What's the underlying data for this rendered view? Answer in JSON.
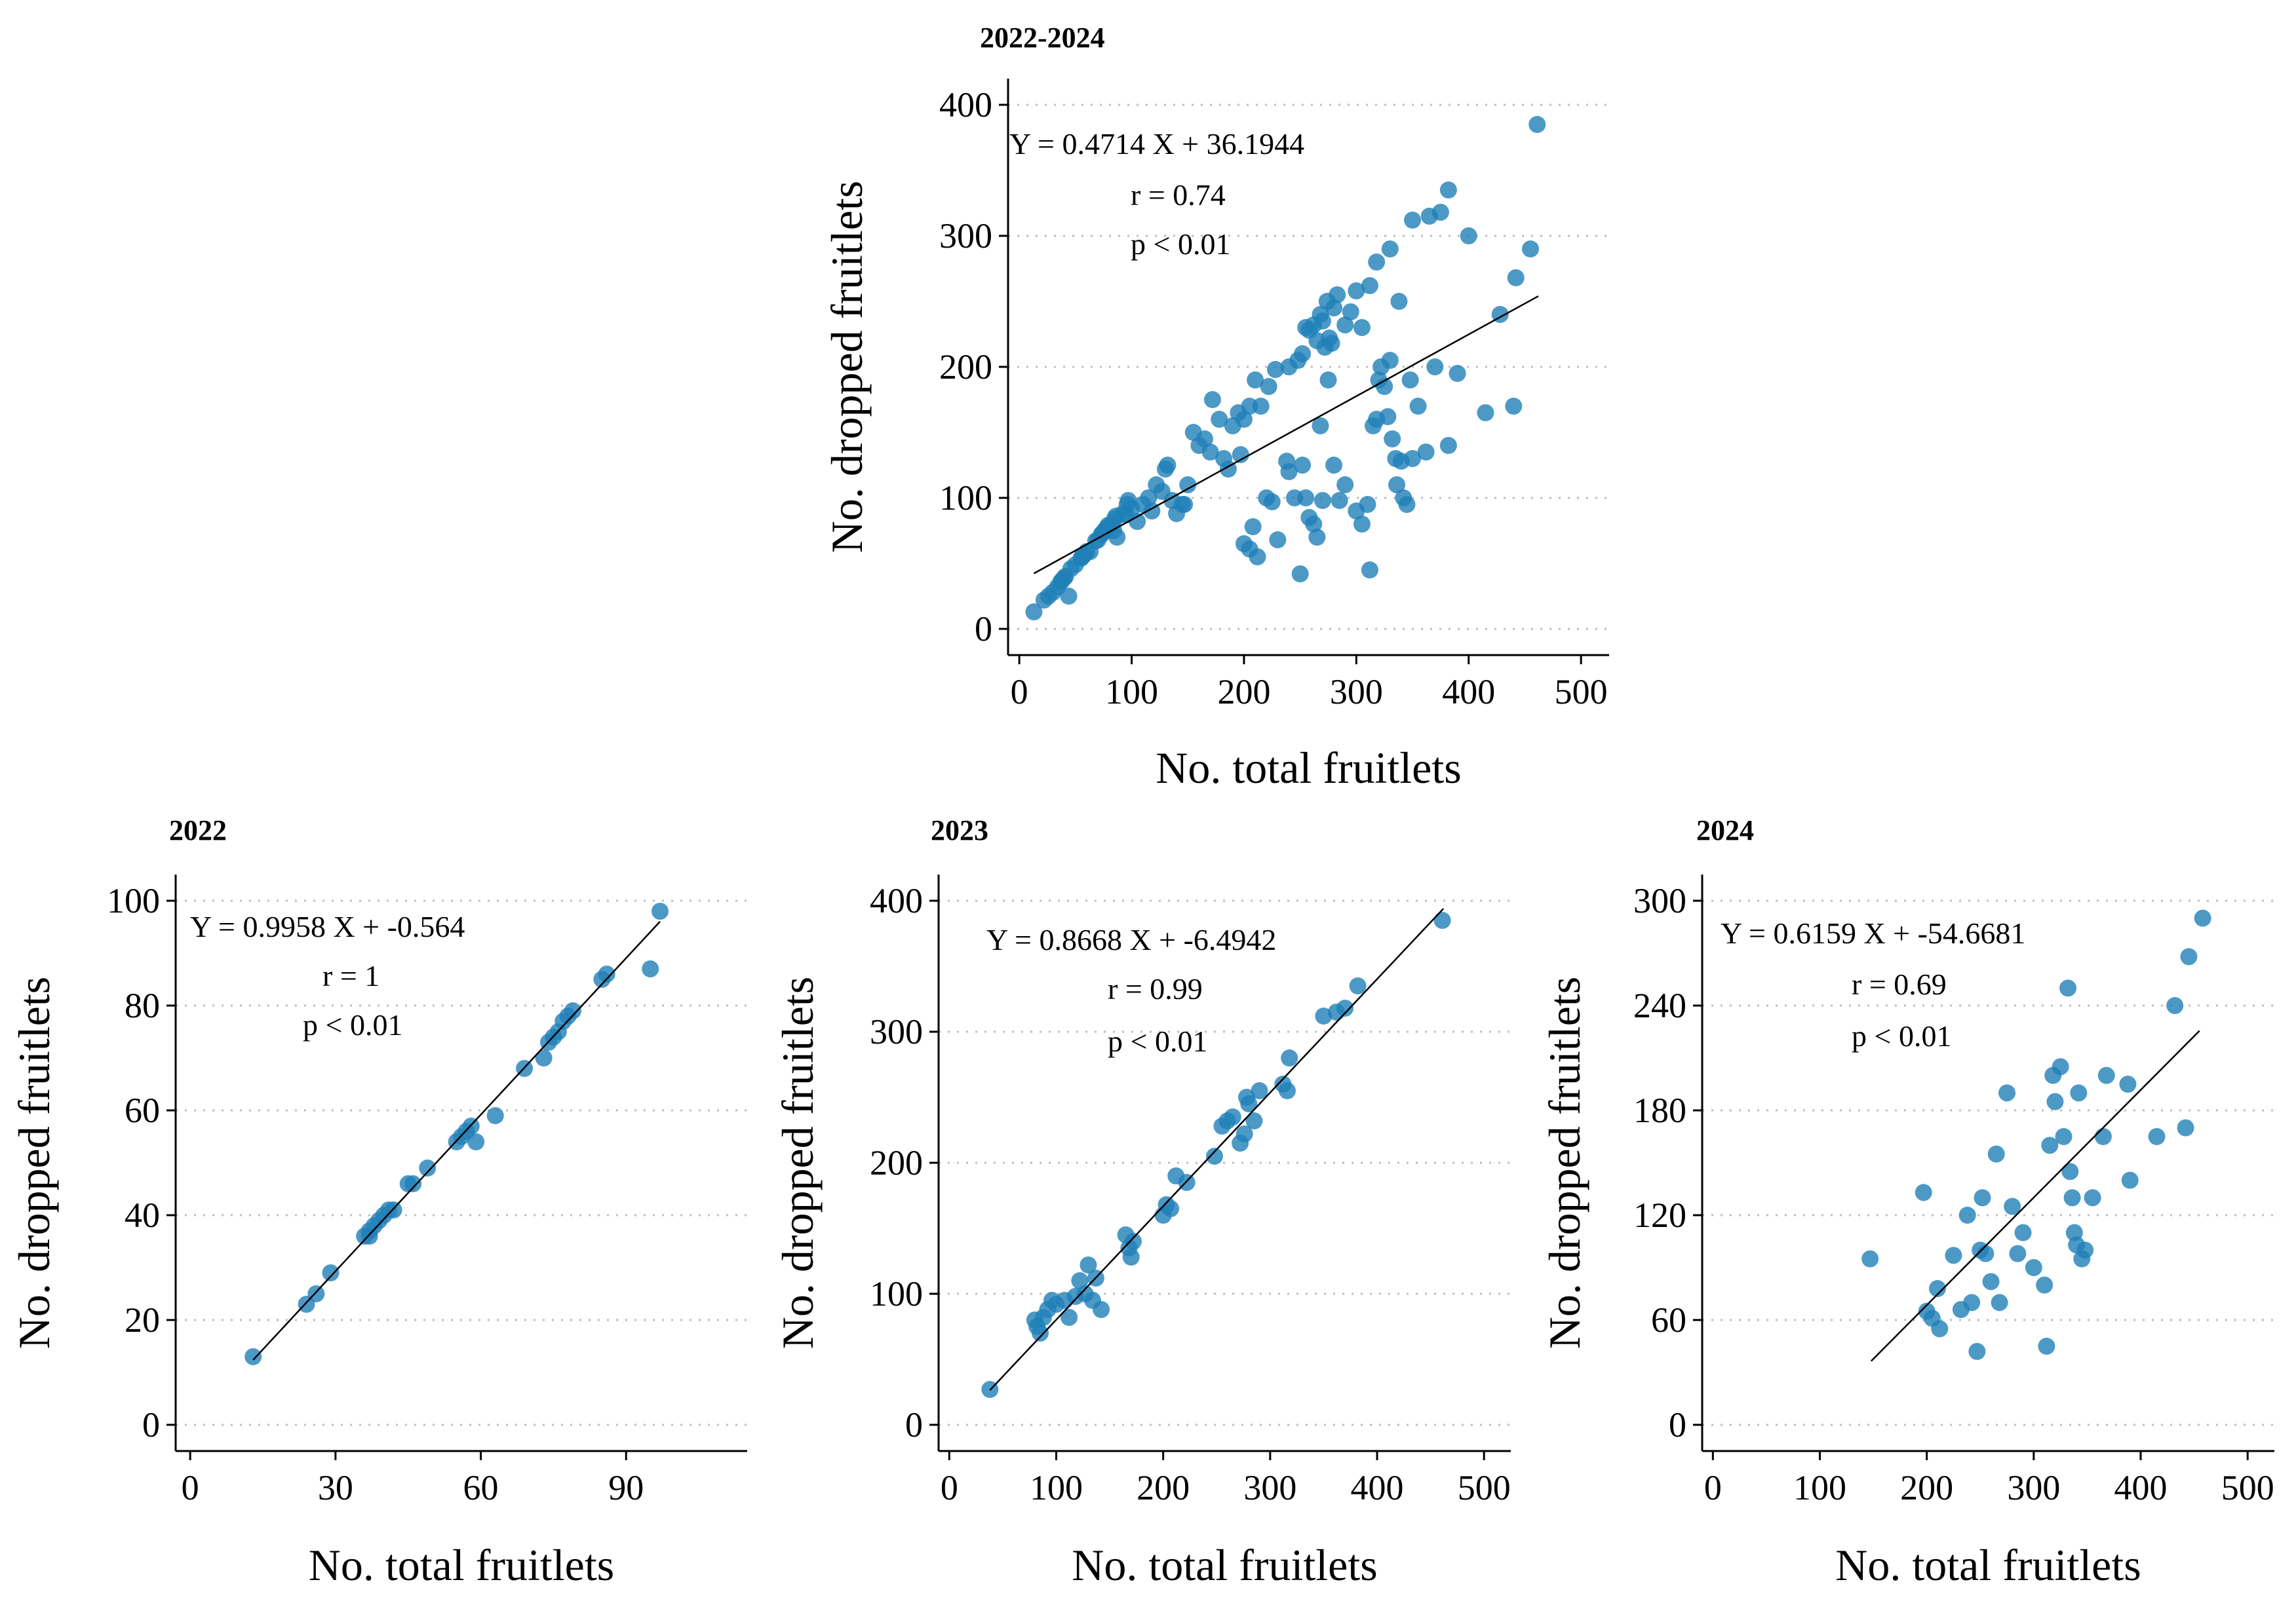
{
  "chart_data": [
    {
      "type": "scatter",
      "title": "2022-2024",
      "xlabel": "No. total fruitlets",
      "ylabel": "No. dropped fruitlets",
      "xlim": [
        -10,
        525
      ],
      "ylim": [
        -20,
        420
      ],
      "xticks": [
        0,
        100,
        200,
        300,
        400,
        500
      ],
      "yticks": [
        0,
        100,
        200,
        300,
        400
      ],
      "grid": "horizontal-dotted",
      "color": "#1f7fb8",
      "annotations": [
        "Y = 0.4714 X + 36.1944",
        "r = 0.74",
        "p < 0.01"
      ],
      "fit": {
        "slope": 0.4714,
        "intercept": 36.1944,
        "x_range": [
          13,
          462
        ]
      },
      "points": [
        [
          13,
          13
        ],
        [
          22,
          22
        ],
        [
          26,
          25
        ],
        [
          30,
          28
        ],
        [
          34,
          32
        ],
        [
          37,
          36
        ],
        [
          38,
          37
        ],
        [
          40,
          39
        ],
        [
          41,
          40
        ],
        [
          44,
          25
        ],
        [
          46,
          46
        ],
        [
          50,
          49
        ],
        [
          55,
          54
        ],
        [
          56,
          55
        ],
        [
          57,
          56
        ],
        [
          58,
          57
        ],
        [
          60,
          59
        ],
        [
          63,
          59
        ],
        [
          68,
          67
        ],
        [
          70,
          68
        ],
        [
          73,
          72
        ],
        [
          74,
          73
        ],
        [
          76,
          75
        ],
        [
          77,
          76
        ],
        [
          78,
          77
        ],
        [
          79,
          79
        ],
        [
          85,
          84
        ],
        [
          86,
          86
        ],
        [
          95,
          87
        ],
        [
          97,
          98
        ],
        [
          82,
          80
        ],
        [
          84,
          75
        ],
        [
          87,
          70
        ],
        [
          92,
          88
        ],
        [
          96,
          95
        ],
        [
          100,
          92
        ],
        [
          105,
          82
        ],
        [
          110,
          95
        ],
        [
          115,
          100
        ],
        [
          118,
          90
        ],
        [
          122,
          110
        ],
        [
          127,
          105
        ],
        [
          130,
          122
        ],
        [
          132,
          125
        ],
        [
          136,
          98
        ],
        [
          140,
          88
        ],
        [
          145,
          95
        ],
        [
          150,
          110
        ],
        [
          155,
          150
        ],
        [
          160,
          140
        ],
        [
          165,
          145
        ],
        [
          170,
          135
        ],
        [
          172,
          175
        ],
        [
          178,
          160
        ],
        [
          182,
          130
        ],
        [
          186,
          122
        ],
        [
          190,
          155
        ],
        [
          195,
          165
        ],
        [
          200,
          160
        ],
        [
          205,
          170
        ],
        [
          210,
          190
        ],
        [
          215,
          170
        ],
        [
          222,
          185
        ],
        [
          228,
          198
        ],
        [
          240,
          200
        ],
        [
          248,
          205
        ],
        [
          252,
          210
        ],
        [
          255,
          230
        ],
        [
          258,
          228
        ],
        [
          262,
          232
        ],
        [
          265,
          220
        ],
        [
          268,
          240
        ],
        [
          270,
          235
        ],
        [
          272,
          215
        ],
        [
          274,
          250
        ],
        [
          276,
          222
        ],
        [
          278,
          218
        ],
        [
          280,
          245
        ],
        [
          283,
          255
        ],
        [
          290,
          232
        ],
        [
          295,
          242
        ],
        [
          300,
          258
        ],
        [
          305,
          230
        ],
        [
          312,
          262
        ],
        [
          318,
          280
        ],
        [
          330,
          290
        ],
        [
          350,
          312
        ],
        [
          365,
          315
        ],
        [
          375,
          318
        ],
        [
          382,
          335
        ],
        [
          400,
          300
        ],
        [
          461,
          385
        ],
        [
          147,
          95
        ],
        [
          197,
          133
        ],
        [
          200,
          65
        ],
        [
          205,
          61
        ],
        [
          208,
          78
        ],
        [
          212,
          55
        ],
        [
          220,
          100
        ],
        [
          225,
          97
        ],
        [
          230,
          68
        ],
        [
          238,
          128
        ],
        [
          240,
          120
        ],
        [
          245,
          100
        ],
        [
          250,
          42
        ],
        [
          252,
          125
        ],
        [
          255,
          100
        ],
        [
          258,
          85
        ],
        [
          262,
          80
        ],
        [
          265,
          70
        ],
        [
          268,
          155
        ],
        [
          270,
          98
        ],
        [
          275,
          190
        ],
        [
          280,
          125
        ],
        [
          285,
          98
        ],
        [
          290,
          110
        ],
        [
          300,
          90
        ],
        [
          305,
          80
        ],
        [
          310,
          95
        ],
        [
          312,
          45
        ],
        [
          315,
          155
        ],
        [
          318,
          160
        ],
        [
          320,
          190
        ],
        [
          322,
          200
        ],
        [
          325,
          185
        ],
        [
          328,
          162
        ],
        [
          330,
          205
        ],
        [
          332,
          145
        ],
        [
          335,
          130
        ],
        [
          336,
          110
        ],
        [
          338,
          250
        ],
        [
          340,
          128
        ],
        [
          342,
          100
        ],
        [
          345,
          95
        ],
        [
          348,
          190
        ],
        [
          350,
          130
        ],
        [
          355,
          170
        ],
        [
          362,
          135
        ],
        [
          370,
          200
        ],
        [
          382,
          140
        ],
        [
          390,
          195
        ],
        [
          415,
          165
        ],
        [
          428,
          240
        ],
        [
          440,
          170
        ],
        [
          442,
          268
        ],
        [
          455,
          290
        ]
      ]
    },
    {
      "type": "scatter",
      "title": "2022",
      "xlabel": "No. total fruitlets",
      "ylabel": "No. dropped fruitlets",
      "xlim": [
        -3,
        115
      ],
      "ylim": [
        -5,
        105
      ],
      "xticks": [
        0,
        30,
        60,
        90
      ],
      "yticks": [
        0,
        20,
        40,
        60,
        80,
        100
      ],
      "grid": "horizontal-dotted",
      "color": "#1f7fb8",
      "annotations": [
        "Y = 0.9958 X + -0.564",
        "r = 1",
        "p < 0.01"
      ],
      "fit": {
        "slope": 0.9958,
        "intercept": -0.564,
        "x_range": [
          13,
          97
        ]
      },
      "points": [
        [
          13,
          13
        ],
        [
          24,
          23
        ],
        [
          26,
          25
        ],
        [
          29,
          29
        ],
        [
          36,
          36
        ],
        [
          37,
          37
        ],
        [
          37,
          36
        ],
        [
          38,
          38
        ],
        [
          39,
          39
        ],
        [
          40,
          40
        ],
        [
          41,
          41
        ],
        [
          42,
          41
        ],
        [
          45,
          46
        ],
        [
          46,
          46
        ],
        [
          49,
          49
        ],
        [
          55,
          54
        ],
        [
          56,
          55
        ],
        [
          57,
          56
        ],
        [
          58,
          57
        ],
        [
          59,
          54
        ],
        [
          63,
          59
        ],
        [
          69,
          68
        ],
        [
          73,
          70
        ],
        [
          74,
          73
        ],
        [
          75,
          74
        ],
        [
          76,
          75
        ],
        [
          77,
          77
        ],
        [
          78,
          78
        ],
        [
          79,
          79
        ],
        [
          85,
          85
        ],
        [
          86,
          86
        ],
        [
          95,
          87
        ],
        [
          97,
          98
        ]
      ]
    },
    {
      "type": "scatter",
      "title": "2023",
      "xlabel": "No. total fruitlets",
      "ylabel": "No. dropped fruitlets",
      "xlim": [
        -10,
        525
      ],
      "ylim": [
        -20,
        420
      ],
      "xticks": [
        0,
        100,
        200,
        300,
        400,
        500
      ],
      "yticks": [
        0,
        100,
        200,
        300,
        400
      ],
      "grid": "horizontal-dotted",
      "color": "#1f7fb8",
      "annotations": [
        "Y = 0.8668 X + -6.4942",
        "r = 0.99",
        "p < 0.01"
      ],
      "fit": {
        "slope": 0.8668,
        "intercept": -6.4942,
        "x_range": [
          38,
          462
        ]
      },
      "points": [
        [
          38,
          27
        ],
        [
          80,
          80
        ],
        [
          82,
          75
        ],
        [
          85,
          70
        ],
        [
          88,
          82
        ],
        [
          92,
          88
        ],
        [
          96,
          95
        ],
        [
          100,
          92
        ],
        [
          108,
          95
        ],
        [
          112,
          82
        ],
        [
          118,
          98
        ],
        [
          122,
          110
        ],
        [
          127,
          100
        ],
        [
          130,
          122
        ],
        [
          134,
          95
        ],
        [
          137,
          112
        ],
        [
          142,
          88
        ],
        [
          165,
          145
        ],
        [
          168,
          135
        ],
        [
          170,
          128
        ],
        [
          172,
          140
        ],
        [
          200,
          160
        ],
        [
          203,
          168
        ],
        [
          207,
          165
        ],
        [
          212,
          190
        ],
        [
          222,
          185
        ],
        [
          248,
          205
        ],
        [
          255,
          228
        ],
        [
          260,
          232
        ],
        [
          265,
          235
        ],
        [
          272,
          215
        ],
        [
          276,
          222
        ],
        [
          278,
          250
        ],
        [
          280,
          245
        ],
        [
          285,
          232
        ],
        [
          290,
          255
        ],
        [
          312,
          260
        ],
        [
          316,
          255
        ],
        [
          318,
          280
        ],
        [
          350,
          312
        ],
        [
          362,
          315
        ],
        [
          370,
          318
        ],
        [
          382,
          335
        ],
        [
          461,
          385
        ]
      ]
    },
    {
      "type": "scatter",
      "title": "2024",
      "xlabel": "No. total fruitlets",
      "ylabel": "No. dropped fruitlets",
      "xlim": [
        -10,
        525
      ],
      "ylim": [
        -15,
        315
      ],
      "xticks": [
        0,
        100,
        200,
        300,
        400,
        500
      ],
      "yticks": [
        0,
        60,
        120,
        180,
        240,
        300
      ],
      "grid": "horizontal-dotted",
      "color": "#1f7fb8",
      "annotations": [
        "Y = 0.6159 X + -54.6681",
        "r = 0.69",
        "p < 0.01"
      ],
      "fit": {
        "slope": 0.6159,
        "intercept": -54.6681,
        "x_range": [
          148,
          455
        ]
      },
      "points": [
        [
          147,
          95
        ],
        [
          197,
          133
        ],
        [
          200,
          65
        ],
        [
          205,
          61
        ],
        [
          210,
          78
        ],
        [
          212,
          55
        ],
        [
          225,
          97
        ],
        [
          232,
          66
        ],
        [
          238,
          120
        ],
        [
          242,
          70
        ],
        [
          247,
          42
        ],
        [
          250,
          100
        ],
        [
          252,
          130
        ],
        [
          255,
          98
        ],
        [
          260,
          82
        ],
        [
          265,
          155
        ],
        [
          268,
          70
        ],
        [
          275,
          190
        ],
        [
          280,
          125
        ],
        [
          285,
          98
        ],
        [
          290,
          110
        ],
        [
          300,
          90
        ],
        [
          310,
          80
        ],
        [
          312,
          45
        ],
        [
          315,
          160
        ],
        [
          318,
          200
        ],
        [
          320,
          185
        ],
        [
          325,
          205
        ],
        [
          328,
          165
        ],
        [
          332,
          250
        ],
        [
          334,
          145
        ],
        [
          336,
          130
        ],
        [
          338,
          110
        ],
        [
          340,
          103
        ],
        [
          342,
          190
        ],
        [
          345,
          95
        ],
        [
          348,
          100
        ],
        [
          355,
          130
        ],
        [
          365,
          165
        ],
        [
          368,
          200
        ],
        [
          388,
          195
        ],
        [
          390,
          140
        ],
        [
          415,
          165
        ],
        [
          432,
          240
        ],
        [
          442,
          170
        ],
        [
          445,
          268
        ],
        [
          458,
          290
        ]
      ]
    }
  ]
}
